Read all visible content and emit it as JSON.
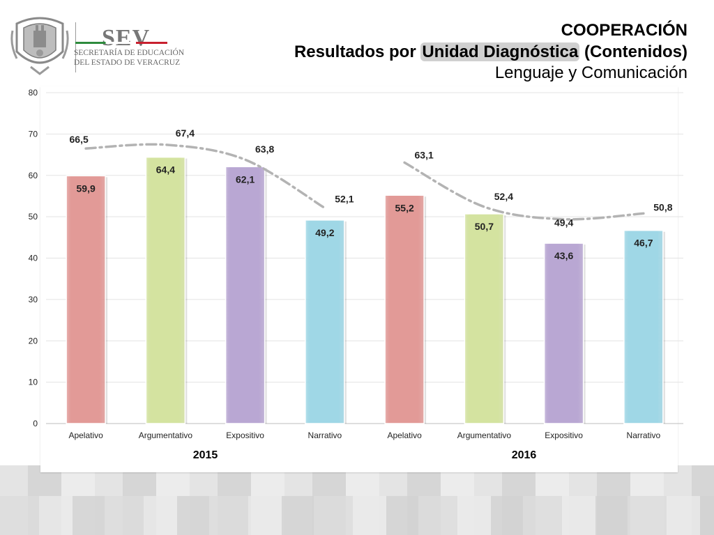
{
  "header": {
    "logo_name": "SEV",
    "logo_sub1": "SECRETARÍA DE EDUCACIÓN",
    "logo_sub2": "DEL ESTADO DE VERACRUZ",
    "title_line1": "COOPERACIÓN",
    "title_line2_prefix": "Resultados por ",
    "title_line2_highlight": "Unidad Diagnóstica",
    "title_line2_suffix": " (Contenidos)",
    "title_line3": "Lenguaje y Comunicación"
  },
  "chart_data": {
    "type": "bar",
    "categories": [
      "Apelativo",
      "Argumentativo",
      "Expositivo",
      "Narrativo",
      "Apelativo",
      "Argumentativo",
      "Expositivo",
      "Narrativo"
    ],
    "groups": [
      {
        "label": "2015",
        "from": 0,
        "to": 3
      },
      {
        "label": "2016",
        "from": 4,
        "to": 7
      }
    ],
    "series": [
      {
        "kind": "bar",
        "values": [
          59.9,
          64.4,
          62.1,
          49.2,
          55.2,
          50.7,
          43.6,
          46.7
        ],
        "labels": [
          "59,9",
          "64,4",
          "62,1",
          "49,2",
          "55,2",
          "50,7",
          "43,6",
          "46,7"
        ]
      },
      {
        "kind": "line",
        "segments": [
          [
            0,
            3
          ],
          [
            4,
            7
          ]
        ],
        "values": [
          66.5,
          67.4,
          63.8,
          52.1,
          63.1,
          52.4,
          49.4,
          50.8
        ],
        "labels": [
          "66,5",
          "67,4",
          "63,8",
          "52,1",
          "63,1",
          "52,4",
          "49,4",
          "50,8"
        ]
      }
    ],
    "bar_colors": [
      "#e29a97",
      "#d4e3a0",
      "#b9a7d3",
      "#9fd7e6",
      "#e29a97",
      "#d4e3a0",
      "#b9a7d3",
      "#9fd7e6"
    ],
    "line_color": "#b3b3b3",
    "yticks": [
      0,
      10,
      20,
      30,
      40,
      50,
      60,
      70,
      80
    ],
    "ylim": [
      0,
      80
    ],
    "grid": true,
    "legend": "none"
  }
}
